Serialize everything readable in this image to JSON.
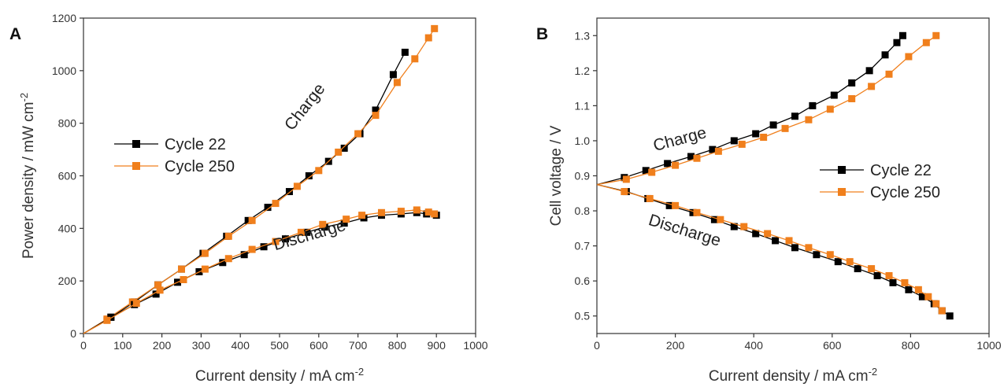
{
  "chart_data": [
    {
      "panel": "A",
      "type": "line",
      "xlabel": "Current density / mA cm",
      "xlabel_sup": "-2",
      "ylabel": "Power density / mW cm",
      "ylabel_sup": "-2",
      "xlim": [
        0,
        1000
      ],
      "ylim": [
        0,
        1200
      ],
      "xticks": [
        "0",
        "100",
        "200",
        "300",
        "400",
        "500",
        "600",
        "700",
        "800",
        "900",
        "1000"
      ],
      "yticks": [
        "0",
        "200",
        "400",
        "600",
        "800",
        "1000",
        "1200"
      ],
      "legend_position": "left",
      "annotations": [
        {
          "text": "Charge",
          "x": 575,
          "y": 850,
          "angle": -52
        },
        {
          "text": "Discharge",
          "x": 580,
          "y": 355,
          "angle": -16
        }
      ],
      "series": [
        {
          "name": "Cycle 22",
          "color": "#000000",
          "group": "charge",
          "x": [
            0,
            70,
            130,
            190,
            250,
            305,
            365,
            420,
            470,
            525,
            575,
            625,
            665,
            705,
            745,
            790,
            820
          ],
          "y": [
            0,
            62,
            120,
            185,
            245,
            305,
            370,
            430,
            480,
            540,
            600,
            655,
            705,
            760,
            850,
            985,
            1070
          ]
        },
        {
          "name": "Cycle 250",
          "color": "#f07f1c",
          "group": "charge",
          "x": [
            0,
            60,
            125,
            190,
            250,
            310,
            370,
            430,
            490,
            545,
            600,
            650,
            700,
            745,
            800,
            845,
            880,
            895
          ],
          "y": [
            0,
            55,
            120,
            185,
            245,
            305,
            370,
            430,
            495,
            560,
            620,
            690,
            760,
            830,
            955,
            1045,
            1125,
            1160
          ]
        },
        {
          "name": "Cycle 22",
          "color": "#000000",
          "group": "discharge",
          "x": [
            0,
            70,
            130,
            185,
            240,
            295,
            355,
            410,
            460,
            515,
            570,
            615,
            665,
            715,
            760,
            810,
            850,
            875,
            900
          ],
          "y": [
            0,
            62,
            110,
            150,
            195,
            235,
            270,
            300,
            330,
            360,
            385,
            405,
            420,
            440,
            450,
            455,
            460,
            455,
            450
          ]
        },
        {
          "name": "Cycle 250",
          "color": "#f07f1c",
          "group": "discharge",
          "x": [
            0,
            60,
            135,
            195,
            255,
            310,
            370,
            430,
            490,
            555,
            610,
            670,
            710,
            760,
            810,
            850,
            880,
            895
          ],
          "y": [
            0,
            50,
            115,
            165,
            205,
            245,
            285,
            320,
            350,
            385,
            415,
            435,
            450,
            460,
            465,
            470,
            462,
            455
          ]
        }
      ]
    },
    {
      "panel": "B",
      "type": "line",
      "xlabel": "Current density / mA cm",
      "xlabel_sup": "-2",
      "ylabel": "Cell voltage / V",
      "ylabel_sup": "",
      "xlim": [
        0,
        1000
      ],
      "ylim": [
        0.45,
        1.35
      ],
      "xticks": [
        "0",
        "200",
        "400",
        "600",
        "800",
        "1000"
      ],
      "yticks": [
        "0.5",
        "0.6",
        "0.7",
        "0.8",
        "0.9",
        "1.0",
        "1.1",
        "1.2",
        "1.3"
      ],
      "legend_position": "right",
      "annotations": [
        {
          "text": "Charge",
          "x": 215,
          "y": 0.99,
          "angle": -15
        },
        {
          "text": "Discharge",
          "x": 220,
          "y": 0.73,
          "angle": 17
        }
      ],
      "series": [
        {
          "name": "Cycle 22",
          "color": "#000000",
          "group": "charge",
          "x": [
            0,
            70,
            125,
            180,
            240,
            295,
            350,
            405,
            450,
            505,
            550,
            605,
            650,
            695,
            735,
            765,
            780
          ],
          "y": [
            0.875,
            0.895,
            0.915,
            0.935,
            0.955,
            0.975,
            1.0,
            1.02,
            1.045,
            1.07,
            1.1,
            1.13,
            1.165,
            1.2,
            1.245,
            1.28,
            1.3
          ]
        },
        {
          "name": "Cycle 250",
          "color": "#f07f1c",
          "group": "charge",
          "x": [
            0,
            75,
            140,
            200,
            255,
            310,
            370,
            425,
            480,
            540,
            595,
            650,
            700,
            745,
            795,
            840,
            865
          ],
          "y": [
            0.875,
            0.89,
            0.91,
            0.93,
            0.95,
            0.97,
            0.99,
            1.01,
            1.035,
            1.06,
            1.09,
            1.12,
            1.155,
            1.19,
            1.24,
            1.28,
            1.3
          ]
        },
        {
          "name": "Cycle 22",
          "color": "#000000",
          "group": "discharge",
          "x": [
            0,
            75,
            130,
            185,
            245,
            300,
            350,
            405,
            455,
            505,
            560,
            615,
            665,
            715,
            755,
            795,
            830,
            860,
            880,
            900
          ],
          "y": [
            0.875,
            0.855,
            0.835,
            0.815,
            0.795,
            0.775,
            0.755,
            0.735,
            0.715,
            0.695,
            0.675,
            0.655,
            0.635,
            0.615,
            0.595,
            0.575,
            0.555,
            0.535,
            0.515,
            0.5
          ]
        },
        {
          "name": "Cycle 250",
          "color": "#f07f1c",
          "group": "discharge",
          "x": [
            0,
            70,
            135,
            200,
            255,
            315,
            375,
            435,
            490,
            540,
            595,
            645,
            700,
            745,
            785,
            820,
            845,
            865,
            880
          ],
          "y": [
            0.875,
            0.855,
            0.835,
            0.815,
            0.795,
            0.775,
            0.755,
            0.735,
            0.715,
            0.695,
            0.675,
            0.655,
            0.635,
            0.615,
            0.595,
            0.575,
            0.555,
            0.535,
            0.515
          ]
        }
      ]
    }
  ],
  "legend_entries": [
    {
      "label": "Cycle 22",
      "color": "#000000"
    },
    {
      "label": "Cycle 250",
      "color": "#f07f1c"
    }
  ]
}
